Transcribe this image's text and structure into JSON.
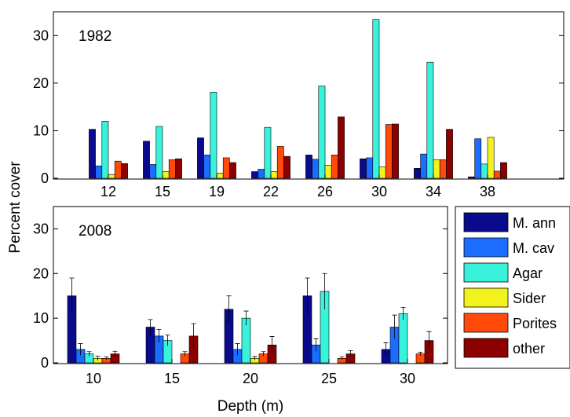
{
  "figure": {
    "ylabel": "Percent cover",
    "xlabel": "Depth (m)"
  },
  "colors": {
    "M. ann": "#0a0a8c",
    "M. cav": "#1a6dff",
    "Agar": "#38f2dc",
    "Sider": "#f2f21c",
    "Porites": "#ff4a0a",
    "other": "#8c0000"
  },
  "legend": [
    "M. ann",
    "M. cav",
    "Agar",
    "Sider",
    "Porites",
    "other"
  ],
  "chart_data": [
    {
      "type": "bar",
      "panel_label": "1982",
      "categories": [
        "12",
        "15",
        "19",
        "22",
        "26",
        "30",
        "34",
        "38"
      ],
      "ylim": [
        0,
        35
      ],
      "yticks": [
        0,
        10,
        20,
        30
      ],
      "series": [
        {
          "name": "M. ann",
          "values": [
            10.3,
            7.8,
            8.5,
            1.4,
            4.9,
            4.1,
            2.1,
            0.3
          ]
        },
        {
          "name": "M. cav",
          "values": [
            2.6,
            2.9,
            4.9,
            1.9,
            4.0,
            4.3,
            5.1,
            8.3
          ]
        },
        {
          "name": "Agar",
          "values": [
            12.0,
            10.9,
            18.1,
            10.7,
            19.4,
            33.4,
            24.4,
            3.0
          ]
        },
        {
          "name": "Sider",
          "values": [
            0.8,
            1.4,
            1.1,
            1.4,
            2.7,
            2.4,
            3.9,
            8.6
          ]
        },
        {
          "name": "Porites",
          "values": [
            3.6,
            3.9,
            4.3,
            6.7,
            4.9,
            11.3,
            3.9,
            1.5
          ]
        },
        {
          "name": "other",
          "values": [
            3.1,
            4.1,
            3.3,
            4.6,
            12.9,
            11.4,
            10.3,
            3.3
          ]
        }
      ]
    },
    {
      "type": "bar",
      "panel_label": "2008",
      "categories": [
        "10",
        "15",
        "20",
        "25",
        "30"
      ],
      "ylim": [
        0,
        35
      ],
      "yticks": [
        0,
        10,
        20,
        30
      ],
      "series": [
        {
          "name": "M. ann",
          "values": [
            15,
            8,
            12,
            15,
            3
          ],
          "error": [
            4.0,
            1.7,
            3.0,
            4.0,
            1.5
          ]
        },
        {
          "name": "M. cav",
          "values": [
            3,
            6,
            3,
            4,
            8
          ],
          "error": [
            1.3,
            1.5,
            1.3,
            1.4,
            2.7
          ]
        },
        {
          "name": "Agar",
          "values": [
            2,
            5,
            10,
            16,
            11
          ],
          "error": [
            0.5,
            1.2,
            1.6,
            4.0,
            1.4
          ]
        },
        {
          "name": "Sider",
          "values": [
            1,
            0,
            1,
            0,
            0
          ],
          "error": [
            0.5,
            0,
            0.4,
            0,
            0
          ]
        },
        {
          "name": "Porites",
          "values": [
            1,
            2,
            2,
            1,
            2
          ],
          "error": [
            0.3,
            0.5,
            0.5,
            0.3,
            0.4
          ]
        },
        {
          "name": "other",
          "values": [
            2,
            6,
            4,
            2,
            5
          ],
          "error": [
            0.6,
            2.8,
            1.9,
            0.7,
            2.0
          ]
        }
      ]
    }
  ]
}
